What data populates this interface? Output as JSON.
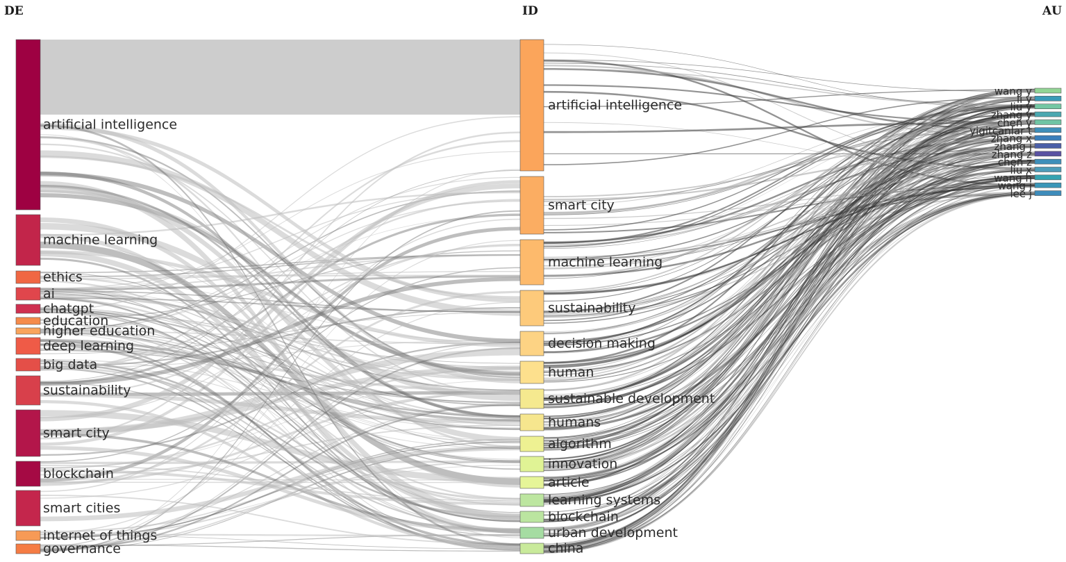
{
  "columns": {
    "left": "DE",
    "middle": "ID",
    "right": "AU"
  },
  "de_nodes": [
    {
      "label": "artificial intelligence",
      "color": "#9e0142"
    },
    {
      "label": "machine learning",
      "color": "#c2254a"
    },
    {
      "label": "ethics",
      "color": "#f06743"
    },
    {
      "label": "ai",
      "color": "#e0464c"
    },
    {
      "label": "chatgpt",
      "color": "#cf3050"
    },
    {
      "label": "education",
      "color": "#f58b4b"
    },
    {
      "label": "higher education",
      "color": "#f9a45c"
    },
    {
      "label": "deep learning",
      "color": "#ef5b47"
    },
    {
      "label": "big data",
      "color": "#e44f48"
    },
    {
      "label": "sustainability",
      "color": "#d8404b"
    },
    {
      "label": "smart city",
      "color": "#b3164a"
    },
    {
      "label": "blockchain",
      "color": "#a50a44"
    },
    {
      "label": "smart cities",
      "color": "#c4264c"
    },
    {
      "label": "internet of things",
      "color": "#f79a56"
    },
    {
      "label": "governance",
      "color": "#f57c44"
    }
  ],
  "id_nodes": [
    {
      "label": "artificial intelligence",
      "color": "#fba55b"
    },
    {
      "label": "smart city",
      "color": "#fbad62"
    },
    {
      "label": "machine learning",
      "color": "#fdba6c"
    },
    {
      "label": "sustainability",
      "color": "#fdca7b"
    },
    {
      "label": "decision making",
      "color": "#fdd384"
    },
    {
      "label": "human",
      "color": "#fde08d"
    },
    {
      "label": "sustainable development",
      "color": "#f5e98f"
    },
    {
      "label": "humans",
      "color": "#f6e68e"
    },
    {
      "label": "algorithm",
      "color": "#eef192"
    },
    {
      "label": "innovation",
      "color": "#e0f395"
    },
    {
      "label": "article",
      "color": "#e6f598"
    },
    {
      "label": "learning systems",
      "color": "#bde6a0"
    },
    {
      "label": "blockchain",
      "color": "#bbe5a0"
    },
    {
      "label": "urban development",
      "color": "#a5dca2"
    },
    {
      "label": "china",
      "color": "#c9ea9b"
    }
  ],
  "au_nodes": [
    {
      "label": "wang y",
      "color": "#92d595"
    },
    {
      "label": "li y",
      "color": "#3a9bb8"
    },
    {
      "label": "liu y",
      "color": "#74c7a4"
    },
    {
      "label": "zhang y",
      "color": "#4aa8b0"
    },
    {
      "label": "chen y",
      "color": "#70c4a4"
    },
    {
      "label": "yigitcanlar t",
      "color": "#3f8fba"
    },
    {
      "label": "zhang x",
      "color": "#3a7fbb"
    },
    {
      "label": "zhang j",
      "color": "#4b5fa8"
    },
    {
      "label": "zhang z",
      "color": "#5a52a2"
    },
    {
      "label": "chen z",
      "color": "#3f8fba"
    },
    {
      "label": "liu x",
      "color": "#4e9cb9"
    },
    {
      "label": "wang h",
      "color": "#36a3b1"
    },
    {
      "label": "wang j",
      "color": "#3a96b8"
    },
    {
      "label": "lee j",
      "color": "#3e8cbb"
    }
  ]
}
